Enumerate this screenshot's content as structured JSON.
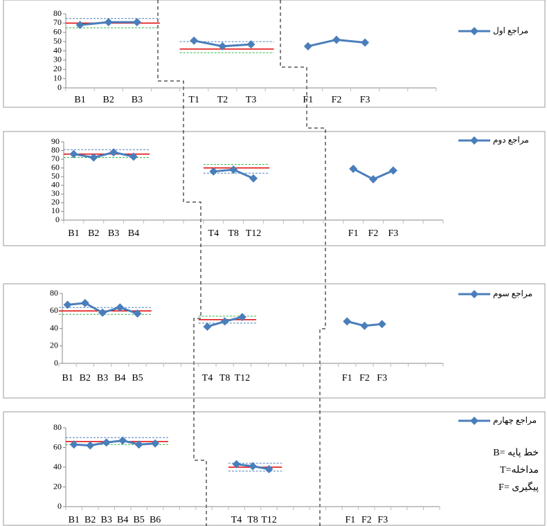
{
  "chart_data": [
    {
      "type": "line",
      "categories": [
        "B1",
        "B2",
        "B3",
        null,
        "T1",
        "T2",
        "T3",
        null,
        "F1",
        "F2",
        "F3",
        null,
        null
      ],
      "series": [
        {
          "name": "مراجع اول",
          "color": "#4a7ebb",
          "values": [
            68,
            71,
            71,
            null,
            51,
            45,
            47,
            null,
            45,
            52,
            49,
            null,
            null
          ]
        }
      ],
      "ylim": [
        0,
        80
      ],
      "yticks": [
        0,
        10,
        20,
        30,
        40,
        50,
        60,
        70,
        80
      ],
      "reference_lines": [
        {
          "value": 70,
          "span": [
            0,
            2
          ],
          "color": "#e00000",
          "dashed": false
        },
        {
          "value": 75,
          "span": [
            0,
            2
          ],
          "color": "#4a7ebb",
          "dashed": true
        },
        {
          "value": 65,
          "span": [
            0,
            2
          ],
          "color": "#2db34a",
          "dashed": true
        },
        {
          "value": 42,
          "span": [
            4,
            6
          ],
          "color": "#e00000",
          "dashed": false
        },
        {
          "value": 50,
          "span": [
            4,
            6
          ],
          "color": "#4a7ebb",
          "dashed": true
        },
        {
          "value": 38,
          "span": [
            4,
            6
          ],
          "color": "#2db34a",
          "dashed": true
        }
      ]
    },
    {
      "type": "line",
      "categories": [
        "B1",
        "B2",
        "B3",
        "B4",
        null,
        null,
        null,
        "T4",
        "T8",
        "T12",
        null,
        null,
        null,
        null,
        "F1",
        "F2",
        "F3",
        null,
        null
      ],
      "series": [
        {
          "name": "مراجع دوم",
          "color": "#4a7ebb",
          "values": [
            76,
            72,
            78,
            73,
            null,
            null,
            null,
            56,
            58,
            48,
            null,
            null,
            null,
            null,
            59,
            47,
            57,
            null,
            null
          ]
        }
      ],
      "ylim": [
        0,
        90
      ],
      "yticks": [
        0,
        10,
        20,
        30,
        40,
        50,
        60,
        70,
        80,
        90
      ],
      "reference_lines": [
        {
          "value": 76,
          "span": [
            0,
            3
          ],
          "color": "#e00000",
          "dashed": false
        },
        {
          "value": 81,
          "span": [
            0,
            3
          ],
          "color": "#4a7ebb",
          "dashed": true
        },
        {
          "value": 72,
          "span": [
            0,
            3
          ],
          "color": "#2db34a",
          "dashed": true
        },
        {
          "value": 60,
          "span": [
            7,
            9
          ],
          "color": "#e00000",
          "dashed": false
        },
        {
          "value": 64,
          "span": [
            7,
            9
          ],
          "color": "#2db34a",
          "dashed": true
        },
        {
          "value": 54,
          "span": [
            7,
            9
          ],
          "color": "#4a7ebb",
          "dashed": true
        }
      ]
    },
    {
      "type": "line",
      "categories": [
        "B1",
        "B2",
        "B3",
        "B4",
        "B5",
        null,
        null,
        null,
        "T4",
        "T8",
        "T12",
        null,
        null,
        null,
        null,
        null,
        "F1",
        "F2",
        "F3",
        null,
        null,
        null
      ],
      "series": [
        {
          "name": "مراجع سوم",
          "color": "#4a7ebb",
          "values": [
            67,
            69,
            58,
            64,
            57,
            null,
            null,
            null,
            42,
            48,
            53,
            null,
            null,
            null,
            null,
            null,
            48,
            43,
            45,
            null,
            null,
            null
          ]
        }
      ],
      "ylim": [
        0,
        80
      ],
      "yticks": [
        0,
        20,
        40,
        60,
        80
      ],
      "reference_lines": [
        {
          "value": 60,
          "span": [
            0,
            4
          ],
          "color": "#e00000",
          "dashed": false
        },
        {
          "value": 64,
          "span": [
            0,
            4
          ],
          "color": "#4a7ebb",
          "dashed": true
        },
        {
          "value": 56,
          "span": [
            0,
            4
          ],
          "color": "#2db34a",
          "dashed": true
        },
        {
          "value": 50,
          "span": [
            8,
            10
          ],
          "color": "#e00000",
          "dashed": false
        },
        {
          "value": 54,
          "span": [
            8,
            10
          ],
          "color": "#2db34a",
          "dashed": true
        },
        {
          "value": 46,
          "span": [
            8,
            10
          ],
          "color": "#4a7ebb",
          "dashed": true
        }
      ]
    },
    {
      "type": "line",
      "categories": [
        "B1",
        "B2",
        "B3",
        "B4",
        "B5",
        "B6",
        null,
        null,
        null,
        null,
        "T4",
        "T8",
        "T12",
        null,
        null,
        null,
        null,
        "F1",
        "F2",
        "F3",
        null,
        null,
        null
      ],
      "series": [
        {
          "name": "مراجع چهارم",
          "color": "#4a7ebb",
          "values": [
            63,
            62,
            65,
            67,
            63,
            64,
            null,
            null,
            null,
            null,
            43,
            41,
            38,
            null,
            null,
            null,
            null,
            null,
            null,
            null,
            null,
            null,
            null
          ]
        }
      ],
      "ylim": [
        0,
        80
      ],
      "yticks": [
        0,
        20,
        40,
        60,
        80
      ],
      "reference_lines": [
        {
          "value": 66,
          "span": [
            0,
            5
          ],
          "color": "#e00000",
          "dashed": false
        },
        {
          "value": 70,
          "span": [
            0,
            5
          ],
          "color": "#4a7ebb",
          "dashed": true
        },
        {
          "value": 63,
          "span": [
            0,
            5
          ],
          "color": "#2db34a",
          "dashed": true
        },
        {
          "value": 40,
          "span": [
            10,
            12
          ],
          "color": "#e00000",
          "dashed": false
        },
        {
          "value": 44,
          "span": [
            10,
            12
          ],
          "color": "#4a7ebb",
          "dashed": true
        },
        {
          "value": 36,
          "span": [
            10,
            12
          ],
          "color": "#4a7ebb",
          "dashed": true
        }
      ],
      "annotations": [
        "B= خط پایه",
        "T=مداخله",
        "F= پیگیری"
      ]
    }
  ]
}
